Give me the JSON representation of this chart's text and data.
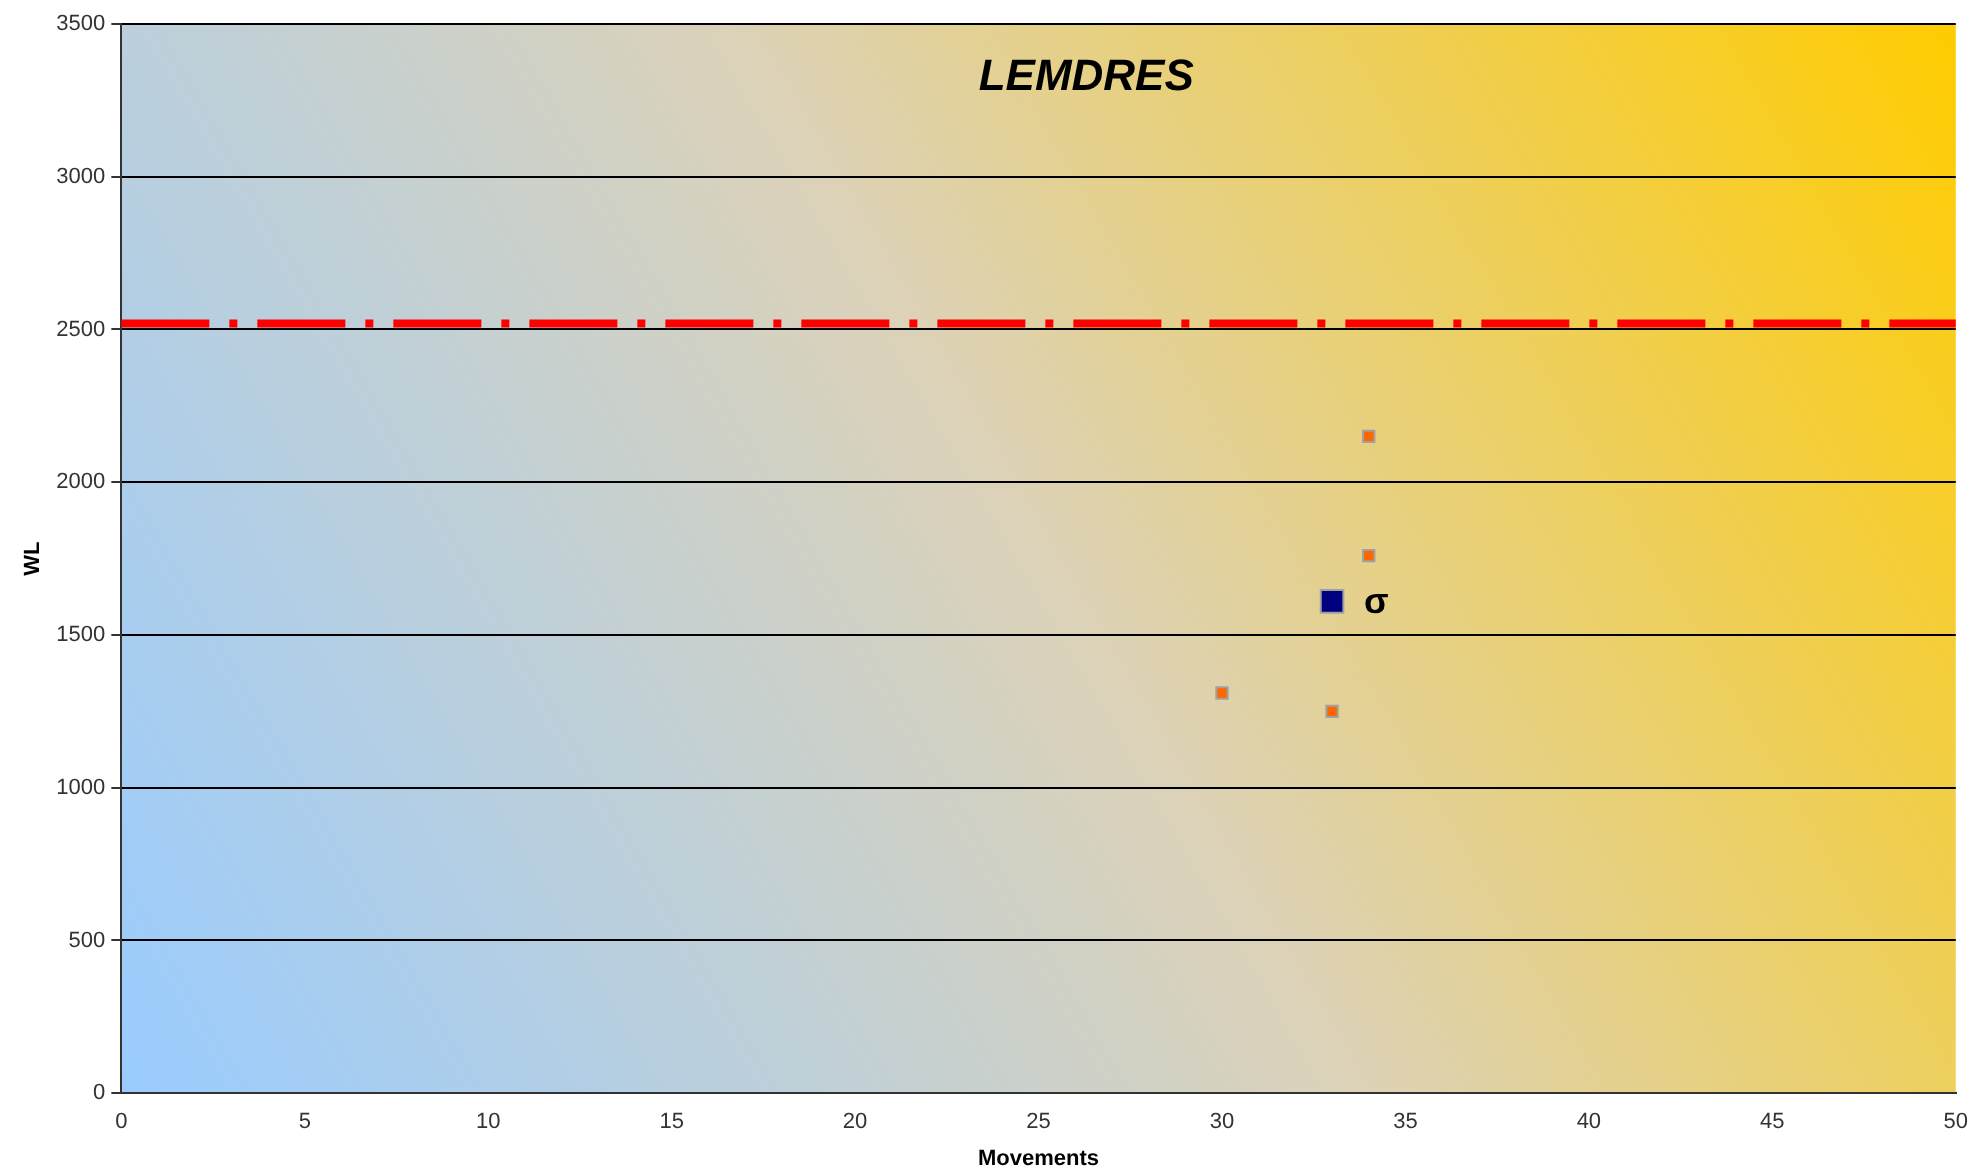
{
  "chart_data": {
    "type": "scatter",
    "title": "LEMDRES",
    "xlabel": "Movements",
    "ylabel": "WL",
    "xlim": [
      0,
      50
    ],
    "xticks": [
      0,
      5,
      10,
      15,
      20,
      25,
      30,
      35,
      40,
      45,
      50
    ],
    "ylim": [
      0,
      3500
    ],
    "yticks": [
      0,
      500,
      1000,
      1500,
      2000,
      2500,
      3000,
      3500
    ],
    "grid": "y",
    "legend": false,
    "marker": "square",
    "series": [
      {
        "color": "#ff6600",
        "x": [
          30,
          33,
          34,
          34
        ],
        "values": [
          1310,
          1250,
          1760,
          2150
        ]
      },
      {
        "color": "#000080",
        "x": [
          33
        ],
        "values": [
          1610
        ]
      }
    ],
    "ref_lines": [
      {
        "axis": "y",
        "value": 2520,
        "color": "#ff0000",
        "line_style": "dashed"
      }
    ],
    "annotations": [
      {
        "text": "σ",
        "x": 33,
        "y": 1610
      }
    ]
  }
}
